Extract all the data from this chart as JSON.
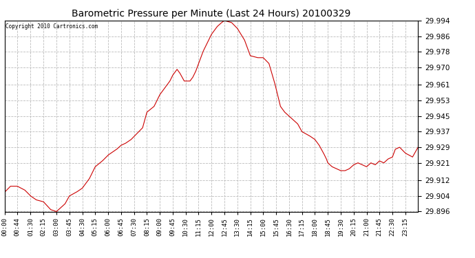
{
  "title": "Barometric Pressure per Minute (Last 24 Hours) 20100329",
  "copyright": "Copyright 2010 Cartronics.com",
  "line_color": "#cc0000",
  "background_color": "#ffffff",
  "grid_color": "#bbbbbb",
  "ylim": [
    29.896,
    29.994
  ],
  "yticks": [
    29.896,
    29.904,
    29.912,
    29.921,
    29.929,
    29.937,
    29.945,
    29.953,
    29.961,
    29.97,
    29.978,
    29.986,
    29.994
  ],
  "xtick_labels": [
    "00:00",
    "00:44",
    "01:30",
    "02:15",
    "03:00",
    "03:45",
    "04:30",
    "05:15",
    "06:00",
    "06:45",
    "07:30",
    "08:15",
    "09:00",
    "09:45",
    "10:30",
    "11:15",
    "12:00",
    "12:45",
    "13:30",
    "14:15",
    "15:00",
    "15:45",
    "16:30",
    "17:15",
    "18:00",
    "18:45",
    "19:30",
    "20:15",
    "21:00",
    "21:45",
    "22:30",
    "23:15"
  ],
  "ctrl_t": [
    0,
    20,
    44,
    70,
    90,
    110,
    135,
    160,
    180,
    210,
    225,
    250,
    270,
    295,
    315,
    340,
    360,
    390,
    405,
    420,
    440,
    460,
    480,
    495,
    520,
    540,
    560,
    575,
    585,
    600,
    610,
    625,
    635,
    645,
    655,
    665,
    675,
    690,
    710,
    720,
    740,
    755,
    765,
    790,
    810,
    835,
    855,
    880,
    900,
    920,
    940,
    960,
    975,
    990,
    1005,
    1020,
    1035,
    1060,
    1080,
    1095,
    1110,
    1120,
    1125,
    1140,
    1155,
    1170,
    1185,
    1200,
    1215,
    1230,
    1245,
    1260,
    1275,
    1290,
    1305,
    1320,
    1335,
    1350,
    1360,
    1375,
    1395,
    1420,
    1439
  ],
  "ctrl_y": [
    29.906,
    29.909,
    29.909,
    29.907,
    29.904,
    29.902,
    29.901,
    29.897,
    29.896,
    29.9,
    29.904,
    29.906,
    29.908,
    29.913,
    29.919,
    29.922,
    29.925,
    29.928,
    29.93,
    29.931,
    29.933,
    29.936,
    29.939,
    29.947,
    29.95,
    29.956,
    29.96,
    29.963,
    29.966,
    29.969,
    29.967,
    29.963,
    29.963,
    29.963,
    29.965,
    29.968,
    29.972,
    29.978,
    29.984,
    29.987,
    29.991,
    29.993,
    29.994,
    29.993,
    29.99,
    29.984,
    29.976,
    29.975,
    29.975,
    29.972,
    29.962,
    29.95,
    29.947,
    29.945,
    29.943,
    29.941,
    29.937,
    29.935,
    29.933,
    29.93,
    29.926,
    29.923,
    29.921,
    29.919,
    29.918,
    29.917,
    29.917,
    29.918,
    29.92,
    29.921,
    29.92,
    29.919,
    29.921,
    29.92,
    29.922,
    29.921,
    29.923,
    29.924,
    29.928,
    29.929,
    29.926,
    29.924,
    29.929
  ]
}
